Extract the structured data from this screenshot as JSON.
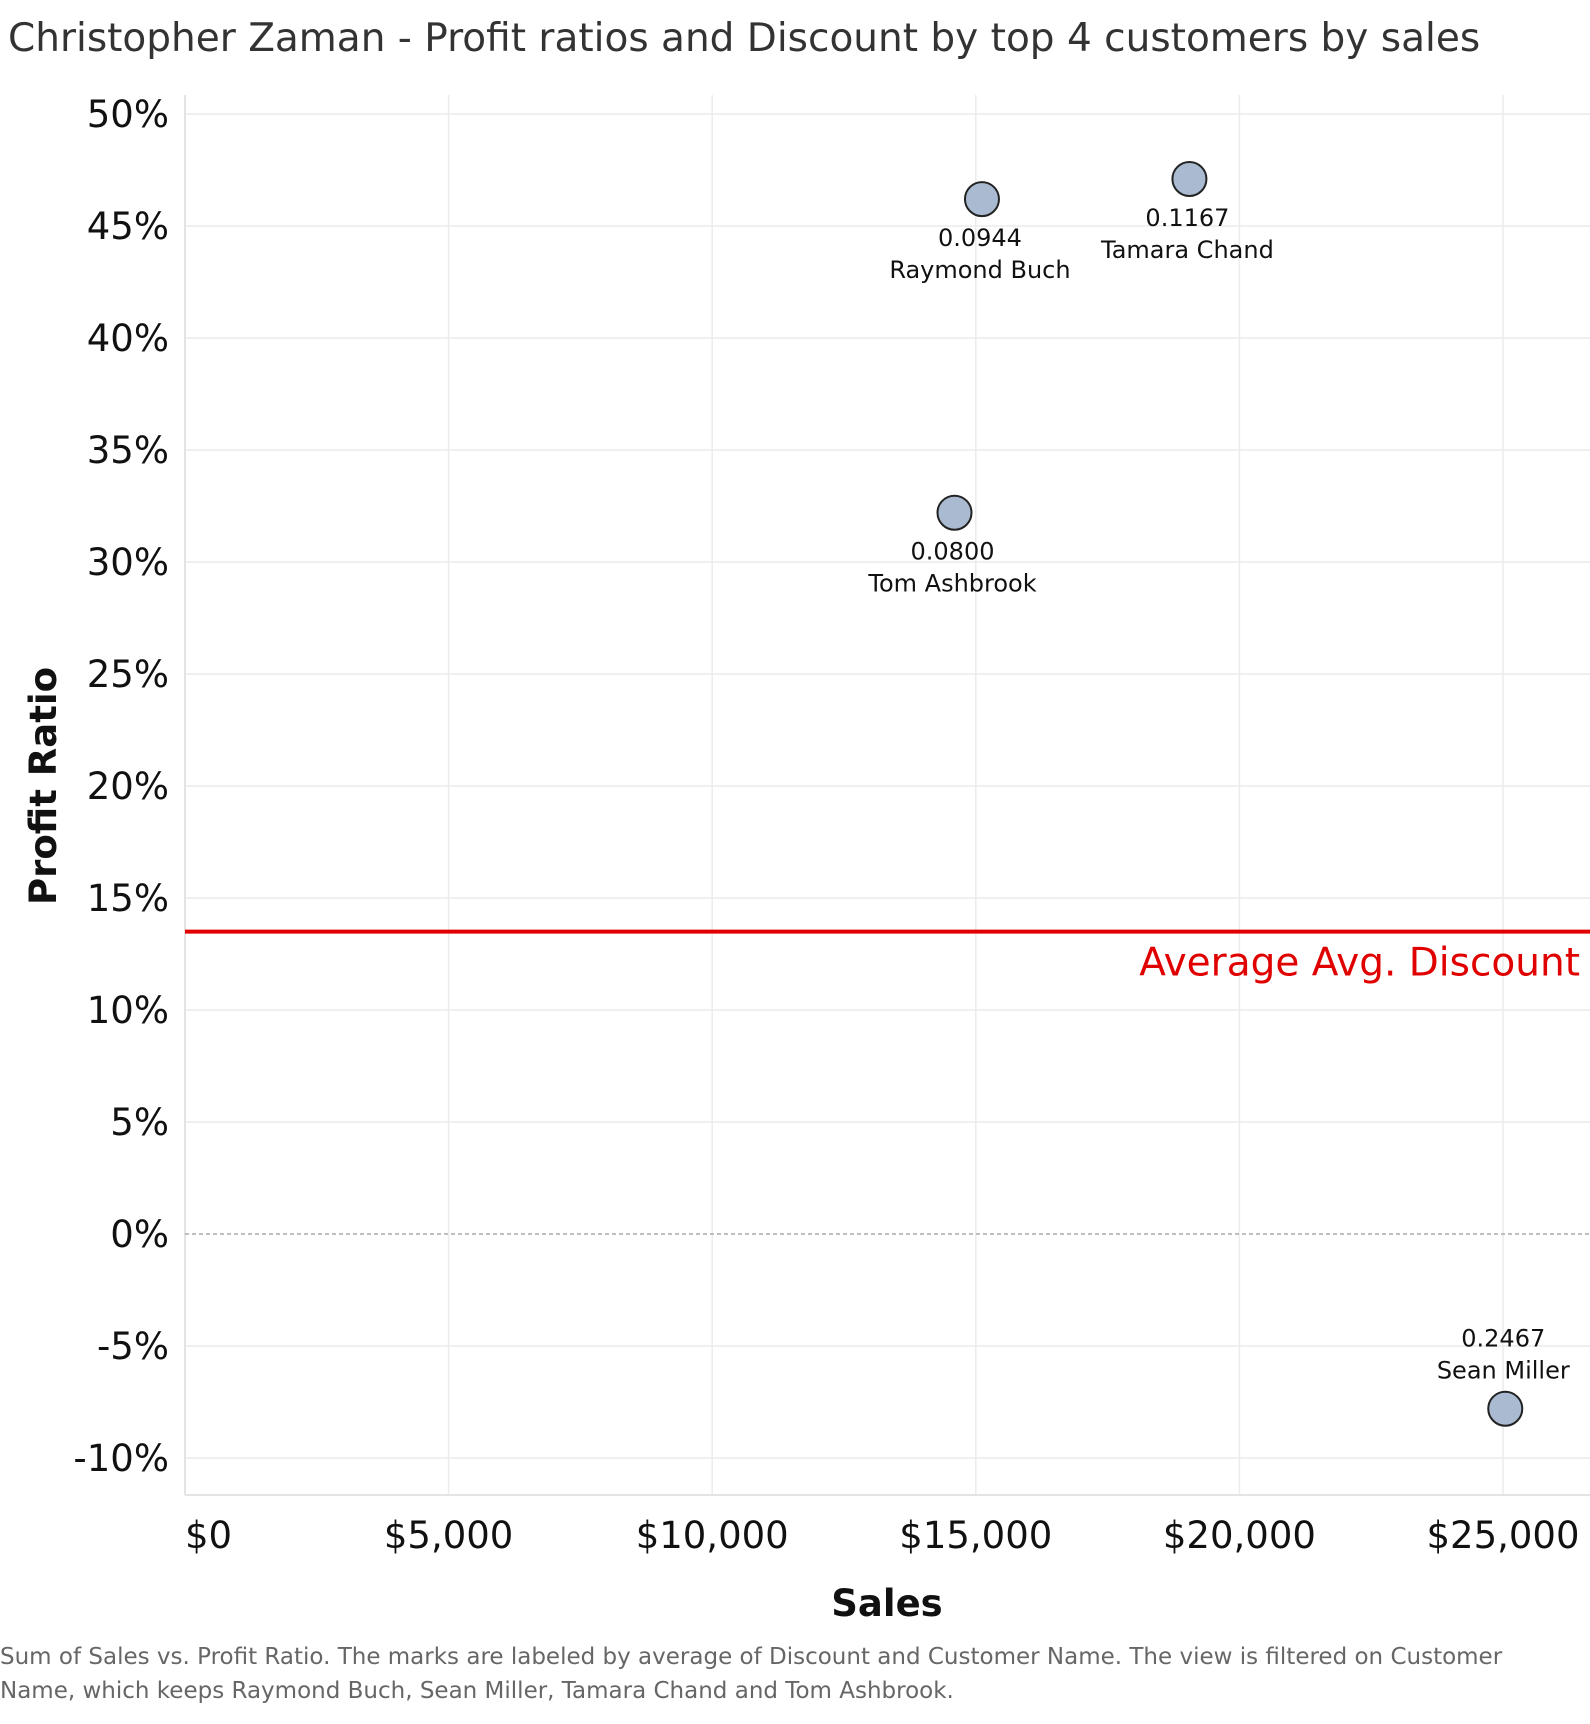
{
  "chart_data": {
    "type": "scatter",
    "title": "Christopher Zaman - Profit ratios and Discount by top 4 customers by sales",
    "xlabel": "Sales",
    "ylabel": "Profit Ratio",
    "xlim": [
      0,
      26600
    ],
    "ylim": [
      -0.113,
      0.505
    ],
    "x_ticks": [
      0,
      5000,
      10000,
      15000,
      20000,
      25000
    ],
    "x_tick_labels": [
      "$0",
      "$5,000",
      "$10,000",
      "$15,000",
      "$20,000",
      "$25,000"
    ],
    "y_ticks": [
      0.5,
      0.45,
      0.4,
      0.35,
      0.3,
      0.25,
      0.2,
      0.15,
      0.1,
      0.05,
      0.0,
      -0.05,
      -0.1
    ],
    "y_tick_labels": [
      "50%",
      "45%",
      "40%",
      "35%",
      "30%",
      "25%",
      "20%",
      "15%",
      "10%",
      "5%",
      "0%",
      "-5%",
      "-10%"
    ],
    "grid": true,
    "points": [
      {
        "name": "Raymond Buch",
        "sales": 15117,
        "profit_ratio": 0.462,
        "discount": "0.0944",
        "label_pos": "below"
      },
      {
        "name": "Tamara Chand",
        "sales": 19052,
        "profit_ratio": 0.471,
        "discount": "0.1167",
        "label_pos": "below"
      },
      {
        "name": "Tom Ashbrook",
        "sales": 14596,
        "profit_ratio": 0.322,
        "discount": "0.0800",
        "label_pos": "below"
      },
      {
        "name": "Sean Miller",
        "sales": 25043,
        "profit_ratio": -0.078,
        "discount": "0.2467",
        "label_pos": "above"
      }
    ],
    "reference_line": {
      "label": "Average Avg. Discount",
      "value": 0.135,
      "color": "#e00000"
    },
    "marker_color": "#aabbd1",
    "caption": "Sum of Sales vs. Profit Ratio.  The marks are labeled by average of Discount and Customer Name. The view is filtered on Customer Name, which keeps Raymond Buch, Sean Miller, Tamara Chand and Tom Ashbrook."
  }
}
